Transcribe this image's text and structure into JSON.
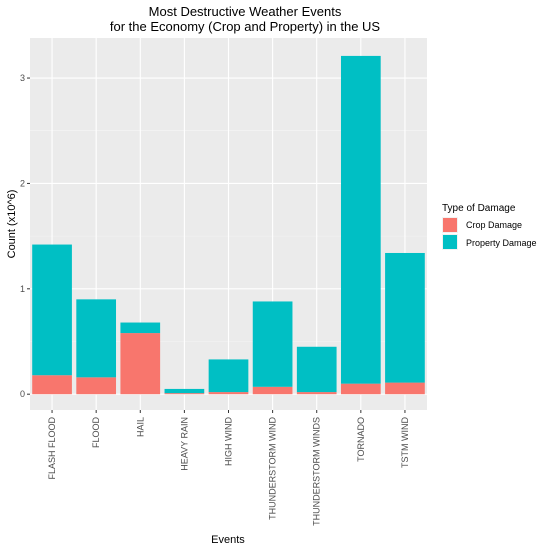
{
  "chart_data": {
    "type": "bar",
    "stacked": true,
    "title_lines": [
      "Most Destructive Weather Events",
      "for the Economy (Crop and Property) in the US"
    ],
    "xlabel": "Events",
    "ylabel": "Count (x10^6)",
    "ylim": [
      -0.15,
      3.38
    ],
    "yticks": [
      0,
      1,
      2,
      3
    ],
    "grid": true,
    "categories": [
      "FLASH FLOOD",
      "FLOOD",
      "HAIL",
      "HEAVY RAIN",
      "HIGH WIND",
      "THUNDERSTORM WIND",
      "THUNDERSTORM WINDS",
      "TORNADO",
      "TSTM WIND"
    ],
    "series": [
      {
        "name": "Crop Damage",
        "color": "#F8766D",
        "values": [
          0.18,
          0.16,
          0.58,
          0.01,
          0.02,
          0.07,
          0.02,
          0.1,
          0.11
        ]
      },
      {
        "name": "Property Damage",
        "color": "#00BFC4",
        "values": [
          1.24,
          0.74,
          0.1,
          0.04,
          0.31,
          0.81,
          0.43,
          3.11,
          1.23
        ]
      }
    ],
    "legend": {
      "title": "Type of Damage",
      "placement": "right"
    }
  }
}
